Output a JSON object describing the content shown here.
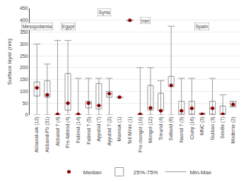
{
  "chart_data": {
    "type": "box",
    "categories": [
      "Abbasid-alk (12)",
      "Abbasid-Pb (31)",
      "Abbasid ? (4)",
      "Pre-fatimid (4)",
      "Fatimid (14)",
      "Fatimid ? (5)",
      "Ayyubid (7)",
      "Ayyubid ? (2)",
      "Mamluk (1)",
      "Tell Minis (1)",
      "Pre-mongol (10)",
      "Mongol (12)",
      "Timurid (4)",
      "Safavid (6)",
      "Nasrid ? (3)",
      "Cluny (16)",
      "MNC (3)",
      "Guibao (3)",
      "Seville (7)",
      "Moderne (2)"
    ],
    "series": [
      {
        "name": "Median",
        "color": "#8b0000",
        "values": [
          115,
          85,
          3,
          50,
          3,
          50,
          40,
          90,
          75,
          400,
          3,
          30,
          18,
          125,
          18,
          28,
          3,
          28,
          3,
          45
        ]
      },
      {
        "name": "25%-75%",
        "color": "#ffffff",
        "q1": [
          80,
          75,
          18,
          20,
          35,
          30,
          25,
          75,
          75,
          400,
          5,
          20,
          18,
          120,
          3,
          3,
          3,
          3,
          3,
          35
        ],
        "q3": [
          140,
          145,
          28,
          175,
          58,
          58,
          133,
          100,
          75,
          400,
          130,
          125,
          92,
          163,
          58,
          58,
          8,
          58,
          38,
          58
        ]
      },
      {
        "name": "Min-Max",
        "color": "#999999",
        "whislo": [
          0,
          0,
          0,
          0,
          0,
          0,
          0,
          0,
          75,
          400,
          0,
          0,
          0,
          0,
          0,
          0,
          0,
          0,
          0,
          35
        ],
        "whishi": [
          300,
          215,
          315,
          315,
          155,
          155,
          155,
          155,
          75,
          400,
          200,
          200,
          145,
          375,
          155,
          155,
          5,
          155,
          85,
          58
        ]
      }
    ],
    "annotations": [
      {
        "text": "Mesopotamia",
        "x_start": 0.5,
        "x_end": 1.5,
        "y": 375
      },
      {
        "text": "Egypt",
        "x_start": 2.5,
        "x_end": 5.5,
        "y": 375
      },
      {
        "text": "Syria",
        "x_start": 6.5,
        "x_end": 8.5,
        "y": 435
      },
      {
        "text": "Iran",
        "x_start": 9.5,
        "x_end": 13.5,
        "y": 400
      },
      {
        "text": "Spain",
        "x_start": 14.5,
        "x_end": 19.5,
        "y": 375
      }
    ],
    "ylabel": "Surface layer (nm)",
    "ylim": [
      0,
      450
    ],
    "yticks": [
      0,
      50,
      100,
      150,
      200,
      250,
      300,
      350,
      400,
      450
    ],
    "grid": true,
    "legend": "bottom"
  }
}
